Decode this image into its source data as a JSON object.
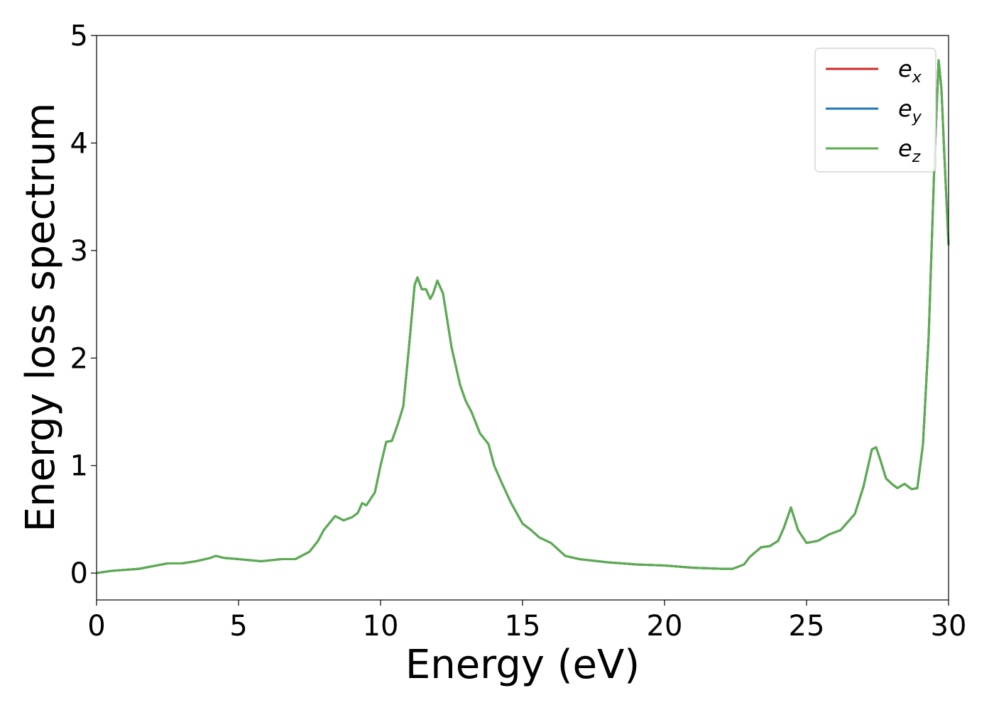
{
  "chart_data": {
    "type": "line",
    "xlabel": "Energy (eV)",
    "ylabel": "Energy loss spectrum",
    "xlim": [
      0,
      30
    ],
    "ylim": [
      -0.25,
      5
    ],
    "xticks": [
      0,
      5,
      10,
      15,
      20,
      25,
      30
    ],
    "yticks": [
      0,
      1,
      2,
      3,
      4,
      5
    ],
    "grid": false,
    "legend_position": "top-right",
    "series": [
      {
        "name": "e_x",
        "label_base": "e",
        "label_sub": "x",
        "color": "#d62728",
        "x": [
          0,
          0.5,
          1.5,
          2.5,
          3,
          3.5,
          4,
          4.2,
          4.5,
          5,
          5.8,
          6.5,
          7,
          7.5,
          7.8,
          8,
          8.4,
          8.7,
          9,
          9.2,
          9.35,
          9.5,
          9.8,
          10,
          10.2,
          10.4,
          10.6,
          10.8,
          11,
          11.2,
          11.3,
          11.45,
          11.6,
          11.75,
          11.85,
          12,
          12.2,
          12.5,
          12.8,
          13,
          13.2,
          13.5,
          13.8,
          14,
          14.3,
          14.6,
          15,
          15.3,
          15.6,
          16,
          16.5,
          17,
          18,
          19,
          20,
          21,
          22,
          22.4,
          22.8,
          23,
          23.4,
          23.7,
          24,
          24.2,
          24.45,
          24.7,
          25,
          25.4,
          25.8,
          26.2,
          26.7,
          27,
          27.3,
          27.45,
          27.6,
          27.8,
          28,
          28.2,
          28.45,
          28.7,
          28.9,
          29.1,
          29.3,
          29.5,
          29.65,
          29.75,
          29.85,
          30
        ],
        "y": [
          0.0,
          0.02,
          0.04,
          0.09,
          0.09,
          0.11,
          0.14,
          0.16,
          0.14,
          0.13,
          0.11,
          0.13,
          0.13,
          0.2,
          0.3,
          0.4,
          0.53,
          0.49,
          0.52,
          0.56,
          0.65,
          0.63,
          0.75,
          1.0,
          1.22,
          1.23,
          1.38,
          1.55,
          2.1,
          2.68,
          2.75,
          2.64,
          2.64,
          2.55,
          2.6,
          2.72,
          2.6,
          2.1,
          1.75,
          1.6,
          1.5,
          1.3,
          1.2,
          1.0,
          0.82,
          0.65,
          0.46,
          0.4,
          0.33,
          0.28,
          0.16,
          0.13,
          0.1,
          0.08,
          0.07,
          0.05,
          0.04,
          0.04,
          0.08,
          0.15,
          0.24,
          0.25,
          0.3,
          0.42,
          0.61,
          0.4,
          0.28,
          0.3,
          0.36,
          0.4,
          0.55,
          0.8,
          1.15,
          1.17,
          1.05,
          0.88,
          0.83,
          0.79,
          0.83,
          0.78,
          0.79,
          1.2,
          2.2,
          3.8,
          4.77,
          4.5,
          3.9,
          3.05
        ]
      },
      {
        "name": "e_y",
        "label_base": "e",
        "label_sub": "y",
        "color": "#1f77b4",
        "same_as": "e_x"
      },
      {
        "name": "e_z",
        "label_base": "e",
        "label_sub": "z",
        "color": "#5aad4e",
        "same_as": "e_x"
      }
    ]
  }
}
